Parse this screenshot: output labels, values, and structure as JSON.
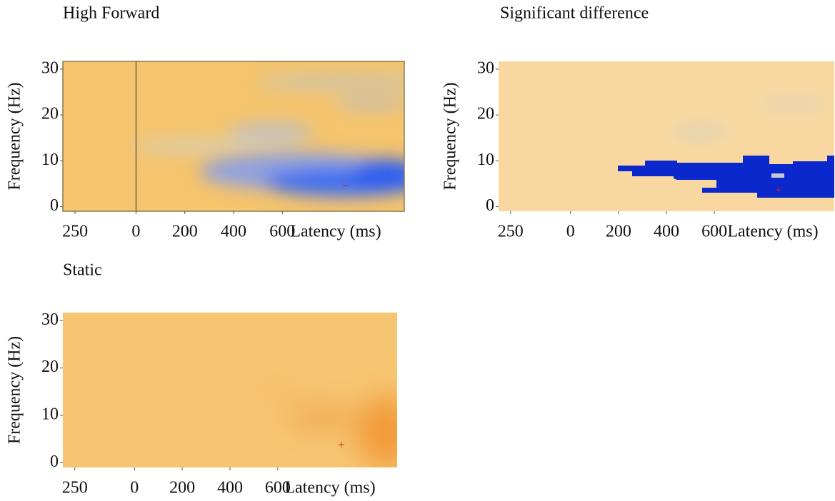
{
  "chart_data": [
    {
      "type": "heatmap",
      "title": "High Forward",
      "xlabel": "Latency (ms)",
      "ylabel": "Frequency (Hz)",
      "xlim": [
        -300,
        1100
      ],
      "xticks": [
        {
          "value": -250,
          "label": "250"
        },
        0,
        200,
        400,
        600
      ],
      "ylim": [
        -1,
        31.7
      ],
      "yticks": [
        0,
        10,
        20,
        30
      ]
    },
    {
      "type": "heatmap",
      "title": "Significant difference",
      "xlabel": "Latency (ms)",
      "ylabel": "Frequency (Hz)",
      "xlim": [
        -300,
        1100
      ],
      "xticks": [
        {
          "value": -250,
          "label": "250"
        },
        0,
        200,
        400,
        600
      ],
      "ylim": [
        -1,
        31.7
      ],
      "yticks": [
        0,
        10,
        20,
        30
      ]
    },
    {
      "type": "heatmap",
      "title": "Static",
      "xlabel": "Latency (ms)",
      "ylabel": "Frequency (Hz)",
      "xlim": [
        -300,
        1100
      ],
      "xticks": [
        {
          "value": -250,
          "label": "250"
        },
        0,
        200,
        400,
        600
      ],
      "ylim": [
        -1,
        31.7
      ],
      "yticks": [
        0,
        10,
        20,
        30
      ]
    }
  ]
}
